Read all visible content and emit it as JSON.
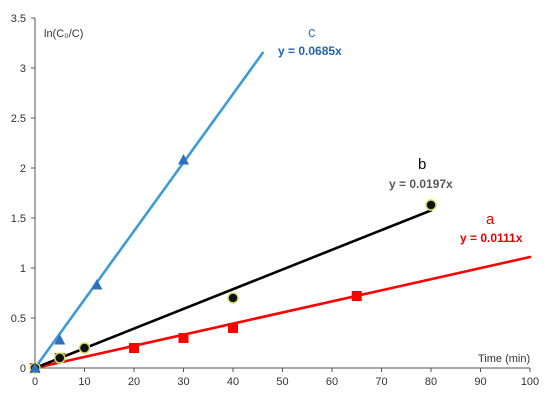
{
  "chart_data": {
    "type": "scatter",
    "ylabel": "ln(C₀/C)",
    "xlabel": "Time (min)",
    "xlim": [
      0,
      100
    ],
    "ylim": [
      0,
      3.5
    ],
    "x_ticks": [
      0,
      10,
      20,
      30,
      40,
      50,
      60,
      70,
      80,
      90,
      100
    ],
    "y_ticks": [
      0,
      0.5,
      1,
      1.5,
      2,
      2.5,
      3,
      3.5
    ],
    "grid": false,
    "legend": "none",
    "series": [
      {
        "name": "a",
        "color": "#ff0000",
        "marker": "square",
        "equation": "y = 0.0111x",
        "slope": 0.0111,
        "x": [
          0,
          5,
          20,
          30,
          40,
          65
        ],
        "y": [
          0,
          0.1,
          0.2,
          0.3,
          0.4,
          0.72
        ],
        "fit_x_range": [
          0,
          100
        ]
      },
      {
        "name": "b",
        "color": "#000000",
        "marker": "circle",
        "equation": "y = 0.0197x",
        "slope": 0.0197,
        "x": [
          0,
          5,
          10,
          40,
          80
        ],
        "y": [
          0,
          0.1,
          0.2,
          0.7,
          1.63
        ],
        "fit_x_range": [
          0,
          80
        ]
      },
      {
        "name": "c",
        "color": "#3d9ad8",
        "marker": "triangle",
        "equation": "y = 0.0685x",
        "slope": 0.0685,
        "x": [
          0,
          5,
          12.5,
          30
        ],
        "y": [
          0,
          0.28,
          0.83,
          2.08
        ],
        "fit_x_range": [
          0,
          46
        ]
      }
    ]
  }
}
